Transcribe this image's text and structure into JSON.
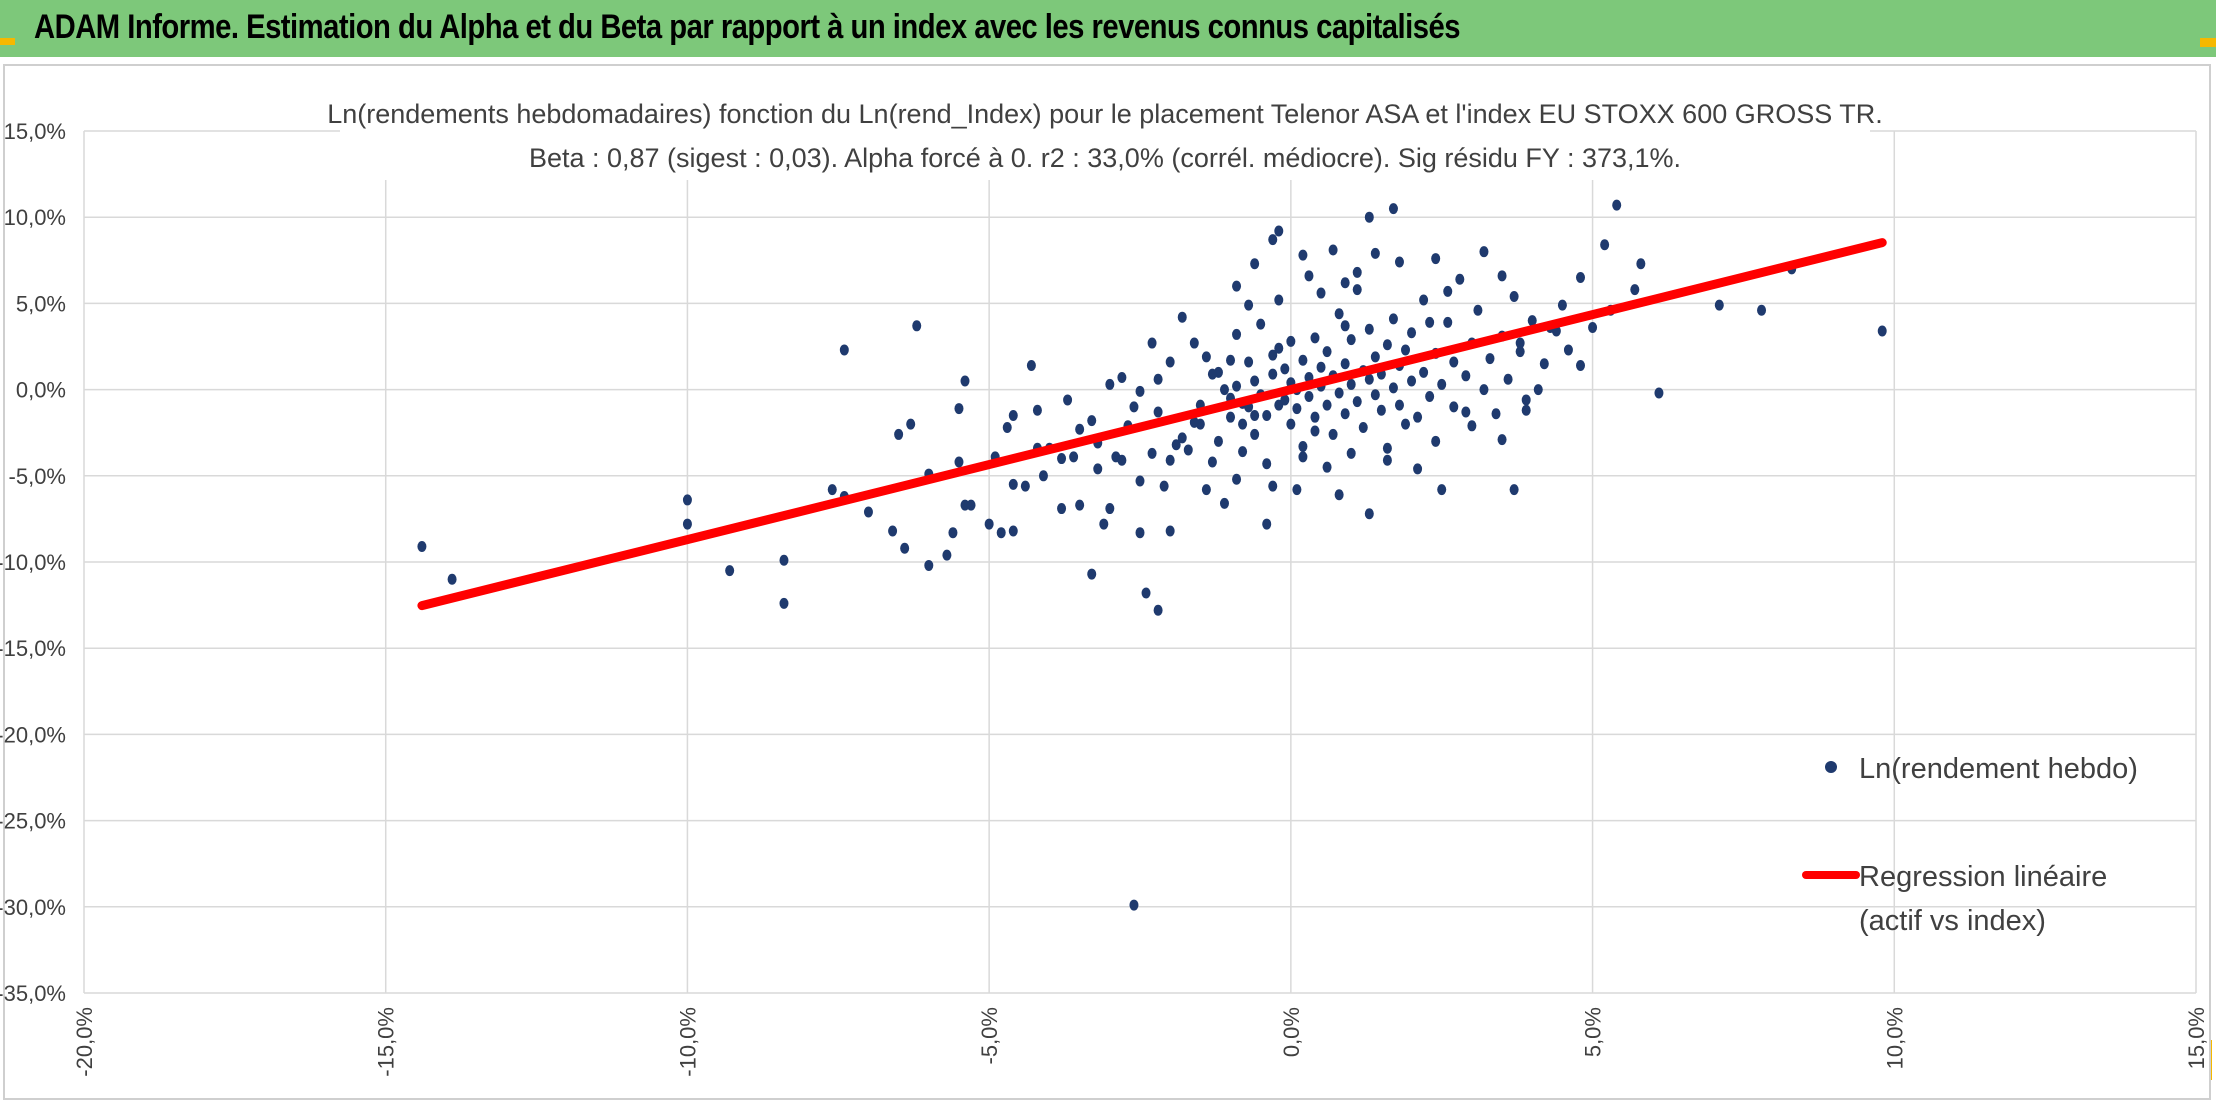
{
  "header": {
    "title": "ADAM Informe. Estimation du Alpha et du Beta par rapport à un index avec les revenus connus capitalisés"
  },
  "colors": {
    "header_bg": "#7dc87a",
    "corner_accent": "#f5b800",
    "point_color": "#1f3a6e",
    "regression_color": "#ff0000",
    "grid_color": "#d9d9d9"
  },
  "chart_data": {
    "type": "scatter",
    "title": "Ln(rendements hebdomadaires) fonction du Ln(rend_Index) pour le placement Telenor ASA et l'index EU STOXX 600 GROSS TR.",
    "subtitle": "Beta : 0,87 (sigest : 0,03). Alpha forcé à 0. r2 : 33,0% (corrél. médiocre). Sig résidu FY : 373,1%.",
    "xlabel": "",
    "ylabel": "",
    "xlim": [
      -20,
      15
    ],
    "ylim": [
      -35,
      15
    ],
    "x_ticks": [
      -20,
      -15,
      -10,
      -5,
      0,
      5,
      10,
      15
    ],
    "y_ticks": [
      -35,
      -30,
      -25,
      -20,
      -15,
      -10,
      -5,
      0,
      5,
      10,
      15
    ],
    "x_tick_labels": [
      "-20,0%",
      "-15,0%",
      "-10,0%",
      "-5,0%",
      "0,0%",
      "5,0%",
      "10,0%",
      "15,0%"
    ],
    "y_tick_labels": [
      "-35,0%",
      "-30,0%",
      "-25,0%",
      "-20,0%",
      "-15,0%",
      "-10,0%",
      "-5,0%",
      "0,0%",
      "5,0%",
      "10,0%",
      "15,0%"
    ],
    "grid": true,
    "legend_position": "right",
    "series": [
      {
        "name": "Ln(rendement hebdo)",
        "kind": "scatter",
        "points": [
          [
            -14.4,
            -9.1
          ],
          [
            -13.9,
            -11.0
          ],
          [
            -10.0,
            -6.4
          ],
          [
            -10.0,
            -7.8
          ],
          [
            -9.3,
            -10.5
          ],
          [
            -8.4,
            -12.4
          ],
          [
            -8.4,
            -9.9
          ],
          [
            -7.4,
            2.3
          ],
          [
            -7.6,
            -5.8
          ],
          [
            -7.4,
            -6.2
          ],
          [
            -7.0,
            -7.1
          ],
          [
            -6.6,
            -8.2
          ],
          [
            -6.5,
            -2.6
          ],
          [
            -6.4,
            -9.2
          ],
          [
            -6.3,
            -2.0
          ],
          [
            -6.2,
            3.7
          ],
          [
            -6.0,
            -10.2
          ],
          [
            -6.0,
            -4.9
          ],
          [
            -5.7,
            -9.6
          ],
          [
            -5.6,
            -8.3
          ],
          [
            -5.5,
            -4.2
          ],
          [
            -5.5,
            -1.1
          ],
          [
            -5.4,
            0.5
          ],
          [
            -5.4,
            -6.7
          ],
          [
            -5.3,
            -6.7
          ],
          [
            -5.0,
            -7.8
          ],
          [
            -4.9,
            -3.9
          ],
          [
            -4.8,
            -8.3
          ],
          [
            -4.6,
            -5.5
          ],
          [
            -4.6,
            -8.2
          ],
          [
            -4.7,
            -2.2
          ],
          [
            -4.6,
            -1.5
          ],
          [
            -4.4,
            -5.6
          ],
          [
            -4.3,
            1.4
          ],
          [
            -4.2,
            -1.2
          ],
          [
            -4.2,
            -3.4
          ],
          [
            -4.1,
            -5.0
          ],
          [
            -4.0,
            -3.4
          ],
          [
            -3.8,
            -4.0
          ],
          [
            -3.8,
            -6.9
          ],
          [
            -3.7,
            -0.6
          ],
          [
            -3.6,
            -3.9
          ],
          [
            -3.5,
            -2.3
          ],
          [
            -3.5,
            -6.7
          ],
          [
            -3.3,
            -10.7
          ],
          [
            -3.2,
            -3.1
          ],
          [
            -3.2,
            -4.6
          ],
          [
            -3.1,
            -7.8
          ],
          [
            -3.0,
            -6.9
          ],
          [
            -2.9,
            -3.9
          ],
          [
            -2.8,
            0.7
          ],
          [
            -2.8,
            -4.1
          ],
          [
            -2.7,
            -2.1
          ],
          [
            -2.6,
            -1.0
          ],
          [
            -2.5,
            -5.3
          ],
          [
            -2.5,
            -8.3
          ],
          [
            -2.4,
            -11.8
          ],
          [
            -2.3,
            -3.7
          ],
          [
            -2.2,
            -1.3
          ],
          [
            -2.2,
            -12.8
          ],
          [
            -2.1,
            -5.6
          ],
          [
            -2.0,
            -4.1
          ],
          [
            -2.0,
            -8.2
          ],
          [
            -1.8,
            -2.8
          ],
          [
            -1.7,
            -3.5
          ],
          [
            -1.6,
            2.7
          ],
          [
            -2.6,
            -29.9
          ],
          [
            -1.5,
            -2.0
          ],
          [
            -1.4,
            -5.8
          ],
          [
            -1.3,
            -4.2
          ],
          [
            -1.2,
            -3.0
          ],
          [
            -1.1,
            0.0
          ],
          [
            -1.0,
            -1.6
          ],
          [
            -0.9,
            -5.2
          ],
          [
            -0.8,
            -3.6
          ],
          [
            -1.2,
            1.0
          ],
          [
            -1.0,
            -0.5
          ],
          [
            -0.9,
            0.2
          ],
          [
            -0.8,
            -2.0
          ],
          [
            -0.8,
            -0.8
          ],
          [
            -0.7,
            -1.0
          ],
          [
            -0.7,
            1.6
          ],
          [
            -0.6,
            -2.6
          ],
          [
            -0.6,
            0.5
          ],
          [
            -0.5,
            3.8
          ],
          [
            -0.5,
            -0.3
          ],
          [
            -0.4,
            -1.5
          ],
          [
            -0.4,
            -4.3
          ],
          [
            -0.3,
            0.9
          ],
          [
            -0.3,
            2.0
          ],
          [
            -0.2,
            -0.9
          ],
          [
            -0.2,
            5.2
          ],
          [
            -0.1,
            1.2
          ],
          [
            -0.1,
            -0.6
          ],
          [
            0.0,
            -2.0
          ],
          [
            0.0,
            0.4
          ],
          [
            0.0,
            2.8
          ],
          [
            0.1,
            -1.1
          ],
          [
            0.1,
            0.0
          ],
          [
            0.2,
            1.7
          ],
          [
            0.2,
            -3.3
          ],
          [
            0.3,
            0.7
          ],
          [
            0.3,
            -0.4
          ],
          [
            0.4,
            3.0
          ],
          [
            0.4,
            -1.6
          ],
          [
            0.5,
            1.3
          ],
          [
            0.5,
            0.2
          ],
          [
            0.6,
            -0.9
          ],
          [
            0.6,
            2.2
          ],
          [
            0.7,
            -2.6
          ],
          [
            0.7,
            0.8
          ],
          [
            0.8,
            4.4
          ],
          [
            0.8,
            -0.2
          ],
          [
            0.9,
            1.5
          ],
          [
            0.9,
            -1.4
          ],
          [
            1.0,
            0.3
          ],
          [
            1.0,
            2.9
          ],
          [
            1.1,
            -0.7
          ],
          [
            1.1,
            5.8
          ],
          [
            1.2,
            1.1
          ],
          [
            1.2,
            -2.2
          ],
          [
            1.3,
            0.6
          ],
          [
            1.3,
            3.5
          ],
          [
            1.4,
            -0.3
          ],
          [
            1.4,
            1.9
          ],
          [
            1.5,
            -1.2
          ],
          [
            1.5,
            0.9
          ],
          [
            1.6,
            2.6
          ],
          [
            1.6,
            -3.4
          ],
          [
            1.7,
            0.1
          ],
          [
            1.7,
            4.1
          ],
          [
            1.8,
            1.4
          ],
          [
            1.8,
            -0.9
          ],
          [
            1.9,
            2.3
          ],
          [
            1.9,
            -2.0
          ],
          [
            2.0,
            0.5
          ],
          [
            2.0,
            3.3
          ],
          [
            2.1,
            -1.6
          ],
          [
            2.2,
            1.0
          ],
          [
            2.2,
            5.2
          ],
          [
            2.3,
            -0.4
          ],
          [
            2.4,
            2.1
          ],
          [
            2.4,
            -3.0
          ],
          [
            2.5,
            0.3
          ],
          [
            2.6,
            3.9
          ],
          [
            2.7,
            -1.0
          ],
          [
            2.7,
            1.6
          ],
          [
            2.8,
            6.4
          ],
          [
            2.9,
            0.8
          ],
          [
            3.0,
            -2.1
          ],
          [
            3.0,
            2.7
          ],
          [
            3.1,
            4.6
          ],
          [
            3.2,
            0.0
          ],
          [
            3.3,
            1.8
          ],
          [
            3.4,
            -1.4
          ],
          [
            3.5,
            3.1
          ],
          [
            3.6,
            0.6
          ],
          [
            3.7,
            5.4
          ],
          [
            3.8,
            2.2
          ],
          [
            3.9,
            -0.6
          ],
          [
            4.0,
            4.0
          ],
          [
            4.2,
            1.5
          ],
          [
            4.4,
            3.4
          ],
          [
            4.6,
            2.3
          ],
          [
            4.8,
            6.5
          ],
          [
            -0.2,
            9.2
          ],
          [
            -0.3,
            8.7
          ],
          [
            0.2,
            7.8
          ],
          [
            1.3,
            10.0
          ],
          [
            1.4,
            7.9
          ],
          [
            1.7,
            10.5
          ],
          [
            0.3,
            6.6
          ],
          [
            -0.6,
            7.3
          ],
          [
            0.7,
            8.1
          ],
          [
            1.8,
            7.4
          ],
          [
            -0.9,
            3.2
          ],
          [
            -1.8,
            4.2
          ],
          [
            -2.0,
            1.6
          ],
          [
            -2.3,
            2.7
          ],
          [
            -2.5,
            -0.1
          ],
          [
            -3.0,
            0.3
          ],
          [
            -3.3,
            -1.8
          ],
          [
            -2.2,
            0.6
          ],
          [
            -1.4,
            1.9
          ],
          [
            -1.5,
            -0.9
          ],
          [
            -0.3,
            -5.6
          ],
          [
            0.1,
            -5.8
          ],
          [
            0.2,
            -3.9
          ],
          [
            0.6,
            -4.5
          ],
          [
            0.8,
            -6.1
          ],
          [
            1.3,
            -7.2
          ],
          [
            1.6,
            -4.1
          ],
          [
            2.1,
            -4.6
          ],
          [
            2.5,
            -5.8
          ],
          [
            -0.4,
            -7.8
          ],
          [
            -1.1,
            -6.6
          ],
          [
            -0.9,
            6.0
          ],
          [
            0.9,
            6.2
          ],
          [
            1.1,
            6.8
          ],
          [
            2.4,
            7.6
          ],
          [
            3.2,
            8.0
          ],
          [
            3.5,
            6.6
          ],
          [
            2.6,
            5.7
          ],
          [
            0.5,
            5.6
          ],
          [
            -0.7,
            4.9
          ],
          [
            3.8,
            2.7
          ],
          [
            4.1,
            0.0
          ],
          [
            3.9,
            -1.2
          ],
          [
            3.5,
            -2.9
          ],
          [
            4.3,
            3.6
          ],
          [
            4.5,
            4.9
          ],
          [
            3.7,
            -5.8
          ],
          [
            4.8,
            1.4
          ],
          [
            5.0,
            3.6
          ],
          [
            5.2,
            8.4
          ],
          [
            5.3,
            4.6
          ],
          [
            5.4,
            10.7
          ],
          [
            5.7,
            5.8
          ],
          [
            5.8,
            7.3
          ],
          [
            6.1,
            -0.2
          ],
          [
            7.1,
            4.9
          ],
          [
            7.8,
            4.6
          ],
          [
            8.3,
            7.0
          ],
          [
            9.8,
            3.4
          ],
          [
            -1.6,
            -1.9
          ],
          [
            -1.9,
            -3.2
          ],
          [
            -1.3,
            0.9
          ],
          [
            -0.6,
            -1.5
          ],
          [
            0.4,
            -2.4
          ],
          [
            1.0,
            -3.7
          ],
          [
            2.9,
            -1.3
          ],
          [
            2.3,
            3.9
          ],
          [
            0.9,
            3.7
          ],
          [
            -0.2,
            2.4
          ],
          [
            -1.0,
            1.7
          ]
        ]
      },
      {
        "name": "Regression linéaire (actif vs index)",
        "name_line1": "Regression linéaire",
        "name_line2": "(actif vs index)",
        "kind": "line",
        "slope": 0.87,
        "intercept": 0,
        "x_range": [
          -14.4,
          9.8
        ]
      }
    ]
  }
}
